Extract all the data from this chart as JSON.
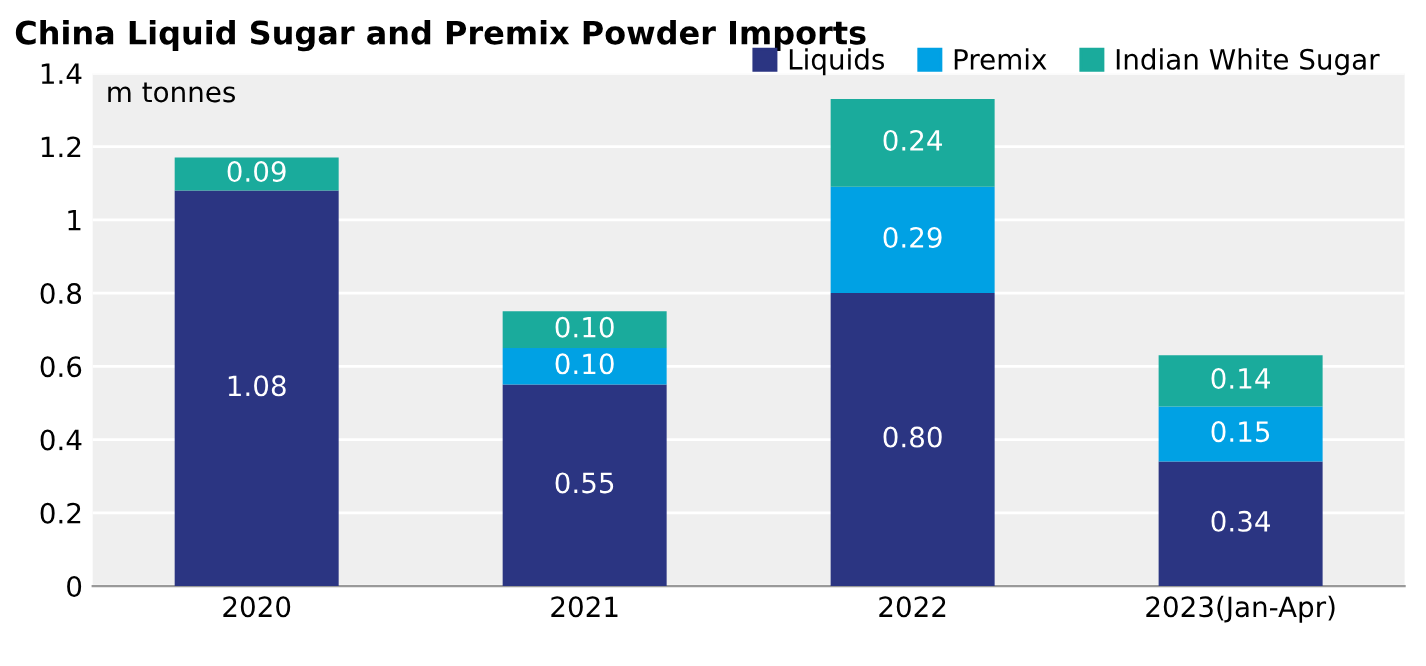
{
  "chart_data": {
    "type": "bar",
    "title": "China Liquid Sugar and Premix Powder Imports",
    "ylabel": "m tonnes",
    "categories": [
      "2020",
      "2021",
      "2022",
      "2023(Jan-Apr)"
    ],
    "stacked": true,
    "series": [
      {
        "name": "Liquids",
        "color": "#2b3582",
        "values": [
          1.08,
          0.55,
          0.8,
          0.34
        ],
        "value_labels": [
          "1.08",
          "0.55",
          "0.80",
          "0.34"
        ]
      },
      {
        "name": "Premix",
        "color": "#00a1e4",
        "values": [
          null,
          0.1,
          0.29,
          0.15
        ],
        "value_labels": [
          null,
          "0.10",
          "0.29",
          "0.15"
        ]
      },
      {
        "name": "Indian White Sugar",
        "color": "#1aab9c",
        "values": [
          0.09,
          0.1,
          0.24,
          0.14
        ],
        "value_labels": [
          "0.09",
          "0.10",
          "0.24",
          "0.14"
        ]
      }
    ],
    "ylim": [
      0,
      1.4
    ],
    "yticks": [
      0,
      0.2,
      0.4,
      0.6,
      0.8,
      1,
      1.2,
      1.4
    ],
    "grid": "y",
    "legend": "top right"
  }
}
